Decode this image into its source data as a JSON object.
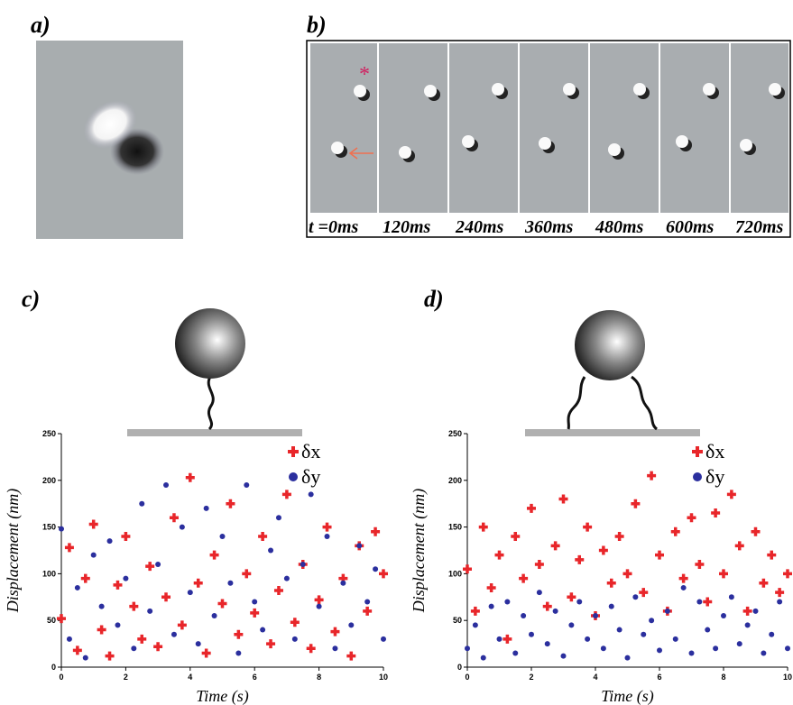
{
  "panels": {
    "a": "a)",
    "b": "b)",
    "c": "c)",
    "d": "d)"
  },
  "time_labels": [
    "t =0ms",
    "120ms",
    "240ms",
    "360ms",
    "480ms",
    "600ms",
    "720ms"
  ],
  "chart_data": [
    {
      "type": "scatter",
      "xlabel": "Time (s)",
      "ylabel": "Displacement (nm)",
      "x": [
        0,
        0.25,
        0.5,
        0.75,
        1,
        1.25,
        1.5,
        1.75,
        2,
        2.25,
        2.5,
        2.75,
        3,
        3.25,
        3.5,
        3.75,
        4,
        4.25,
        4.5,
        4.75,
        5,
        5.25,
        5.5,
        5.75,
        6,
        6.25,
        6.5,
        6.75,
        7,
        7.25,
        7.5,
        7.75,
        8,
        8.25,
        8.5,
        8.75,
        9,
        9.25,
        9.5,
        9.75,
        10
      ],
      "series": [
        {
          "name": "δx",
          "color": "#e8262a",
          "marker": "plus",
          "values": [
            52,
            128,
            18,
            95,
            153,
            40,
            12,
            88,
            140,
            65,
            30,
            108,
            22,
            75,
            160,
            45,
            203,
            90,
            15,
            120,
            68,
            175,
            35,
            100,
            58,
            140,
            25,
            82,
            185,
            48,
            110,
            20,
            72,
            150,
            38,
            95,
            12,
            130,
            60,
            145,
            100
          ]
        },
        {
          "name": "δy",
          "color": "#2b2f9e",
          "marker": "circle",
          "values": [
            148,
            30,
            85,
            10,
            120,
            65,
            135,
            45,
            95,
            20,
            175,
            60,
            110,
            195,
            35,
            150,
            80,
            25,
            170,
            55,
            140,
            90,
            15,
            195,
            70,
            40,
            125,
            160,
            95,
            30,
            110,
            185,
            65,
            140,
            20,
            90,
            45,
            130,
            70,
            105,
            30
          ]
        }
      ],
      "xlim": [
        0,
        10
      ],
      "ylim": [
        0,
        250
      ],
      "xticks": [
        0,
        2,
        4,
        6,
        8,
        10
      ],
      "yticks": [
        0,
        50,
        100,
        150,
        200,
        250
      ],
      "legend": "upper right"
    },
    {
      "type": "scatter",
      "xlabel": "Time (s)",
      "ylabel": "Displacement (nm)",
      "x": [
        0,
        0.25,
        0.5,
        0.75,
        1,
        1.25,
        1.5,
        1.75,
        2,
        2.25,
        2.5,
        2.75,
        3,
        3.25,
        3.5,
        3.75,
        4,
        4.25,
        4.5,
        4.75,
        5,
        5.25,
        5.5,
        5.75,
        6,
        6.25,
        6.5,
        6.75,
        7,
        7.25,
        7.5,
        7.75,
        8,
        8.25,
        8.5,
        8.75,
        9,
        9.25,
        9.5,
        9.75,
        10
      ],
      "series": [
        {
          "name": "δx",
          "color": "#e8262a",
          "marker": "plus",
          "values": [
            105,
            60,
            150,
            85,
            120,
            30,
            140,
            95,
            170,
            110,
            65,
            130,
            180,
            75,
            115,
            150,
            55,
            125,
            90,
            140,
            100,
            175,
            80,
            205,
            120,
            60,
            145,
            95,
            160,
            110,
            70,
            165,
            100,
            185,
            130,
            60,
            145,
            90,
            120,
            80,
            100
          ]
        },
        {
          "name": "δy",
          "color": "#2b2f9e",
          "marker": "circle",
          "values": [
            20,
            45,
            10,
            65,
            30,
            70,
            15,
            55,
            35,
            80,
            25,
            60,
            12,
            45,
            70,
            30,
            55,
            20,
            65,
            40,
            10,
            75,
            35,
            50,
            18,
            60,
            30,
            85,
            15,
            70,
            40,
            20,
            55,
            75,
            25,
            45,
            60,
            15,
            35,
            70,
            20
          ]
        }
      ],
      "xlim": [
        0,
        10
      ],
      "ylim": [
        0,
        250
      ],
      "xticks": [
        0,
        2,
        4,
        6,
        8,
        10
      ],
      "yticks": [
        0,
        50,
        100,
        150,
        200,
        250
      ],
      "legend": "upper right"
    }
  ]
}
